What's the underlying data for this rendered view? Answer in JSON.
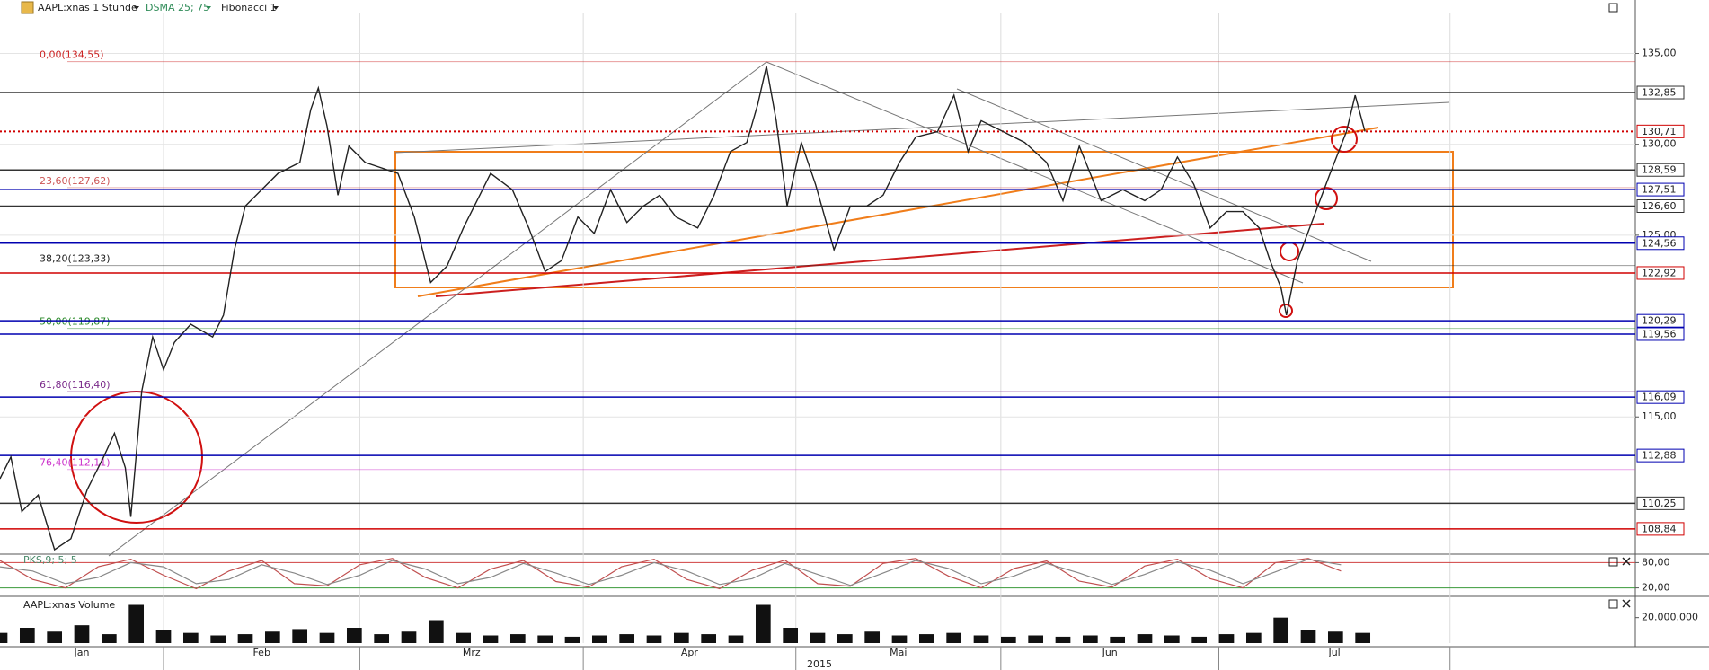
{
  "toolbar": {
    "symbol": "AAPL:xnas 1 Stunde",
    "indicator": "DSMA 25; 75",
    "study": "Fibonacci 1"
  },
  "chart_data": [
    {
      "type": "line",
      "color": "#222222",
      "grid": true,
      "xlim": [
        0,
        1500
      ],
      "xticks": [
        150,
        330,
        535,
        730,
        918,
        1118,
        1330
      ],
      "months": [
        "Jan",
        "Feb",
        "Mrz",
        "Apr",
        "Mai",
        "Jun",
        "Jul"
      ],
      "year": "2015",
      "ylim": [
        107.5,
        137.2
      ],
      "yticks": [
        {
          "value": 135,
          "label": "135,00"
        },
        {
          "value": 130,
          "label": "130,00"
        },
        {
          "value": 125,
          "label": "125,00"
        },
        {
          "value": 115,
          "label": "115,00"
        }
      ],
      "x": [
        0,
        10,
        20,
        35,
        50,
        65,
        80,
        95,
        105,
        115,
        120,
        130,
        140,
        150,
        160,
        175,
        195,
        205,
        215,
        225,
        240,
        255,
        275,
        285,
        292,
        300,
        310,
        320,
        335,
        350,
        365,
        380,
        395,
        410,
        425,
        440,
        450,
        470,
        485,
        500,
        515,
        530,
        545,
        560,
        575,
        590,
        605,
        620,
        640,
        655,
        670,
        685,
        695,
        703,
        712,
        722,
        735,
        748,
        765,
        780,
        795,
        810,
        825,
        840,
        860,
        875,
        888,
        900,
        920,
        940,
        960,
        975,
        990,
        1010,
        1030,
        1050,
        1065,
        1080,
        1095,
        1110,
        1125,
        1140,
        1155,
        1165,
        1175,
        1180,
        1190,
        1205,
        1220,
        1235,
        1243,
        1252
      ],
      "values": [
        111.6,
        112.8,
        109.8,
        110.7,
        107.7,
        108.3,
        111.0,
        112.8,
        114.1,
        112.2,
        109.5,
        116.4,
        119.4,
        117.6,
        119.1,
        120.1,
        119.4,
        120.6,
        124.2,
        126.6,
        127.5,
        128.4,
        129.0,
        131.9,
        133.1,
        131.0,
        127.2,
        129.9,
        129.0,
        128.7,
        128.4,
        126.0,
        122.4,
        123.3,
        125.4,
        127.2,
        128.4,
        127.5,
        125.4,
        123.0,
        123.6,
        126.0,
        125.1,
        127.5,
        125.7,
        126.6,
        127.2,
        126.0,
        125.4,
        127.2,
        129.6,
        130.1,
        132.2,
        134.3,
        131.3,
        126.6,
        130.1,
        127.8,
        124.2,
        126.6,
        126.6,
        127.2,
        129.0,
        130.4,
        130.7,
        132.7,
        129.6,
        131.3,
        130.7,
        130.1,
        129.0,
        126.9,
        129.9,
        126.9,
        127.5,
        126.9,
        127.5,
        129.3,
        127.8,
        125.4,
        126.3,
        126.3,
        125.4,
        123.6,
        122.1,
        120.6,
        123.6,
        126.0,
        128.4,
        130.7,
        132.7,
        130.7
      ],
      "levels": [
        {
          "value": 132.85,
          "label": "132,85",
          "color": "#333333",
          "style": "solid"
        },
        {
          "value": 130.71,
          "label": "130,71",
          "color": "#d00000",
          "style": "dotted"
        },
        {
          "value": 128.59,
          "label": "128,59",
          "color": "#333333",
          "style": "solid"
        },
        {
          "value": 127.51,
          "label": "127,51",
          "color": "#0000b0",
          "style": "solid"
        },
        {
          "value": 126.6,
          "label": "126,60",
          "color": "#333333",
          "style": "solid"
        },
        {
          "value": 124.56,
          "label": "124,56",
          "color": "#0000b0",
          "style": "solid"
        },
        {
          "value": 122.92,
          "label": "122,92",
          "color": "#d00000",
          "style": "solid"
        },
        {
          "value": 120.29,
          "label": "120,29",
          "color": "#0000b0",
          "style": "solid"
        },
        {
          "value": 119.56,
          "label": "119,56",
          "color": "#0000b0",
          "style": "solid"
        },
        {
          "value": 116.09,
          "label": "116,09",
          "color": "#0000b0",
          "style": "solid"
        },
        {
          "value": 112.88,
          "label": "112,88",
          "color": "#0000b0",
          "style": "solid"
        },
        {
          "value": 110.25,
          "label": "110,25",
          "color": "#333333",
          "style": "solid"
        },
        {
          "value": 108.84,
          "label": "108,84",
          "color": "#d00000",
          "style": "solid"
        }
      ],
      "fibonacci": [
        {
          "value": 134.55,
          "label": "0,00(134,55)",
          "color": "#cc2222"
        },
        {
          "value": 127.62,
          "label": "23,60(127,62)",
          "color": "#cc5555"
        },
        {
          "value": 123.33,
          "label": "38,20(123,33)",
          "color": "#222222"
        },
        {
          "value": 119.87,
          "label": "50,00(119,87)",
          "color": "#2a8a2a"
        },
        {
          "value": 116.4,
          "label": "61,80(116,40)",
          "color": "#7a2a8a"
        },
        {
          "value": 112.11,
          "label": "76,40(112,11)",
          "color": "#cc33cc"
        }
      ]
    },
    {
      "type": "line",
      "title": "PKS,9; 5; 5",
      "xlim": [
        0,
        1500
      ],
      "ylim": [
        0,
        100
      ],
      "yticks": [
        {
          "value": 80,
          "label": "80,00"
        },
        {
          "value": 20,
          "label": "20,00"
        }
      ],
      "x": [
        0,
        30,
        60,
        90,
        120,
        150,
        180,
        210,
        240,
        270,
        300,
        330,
        360,
        390,
        420,
        450,
        480,
        510,
        540,
        570,
        600,
        630,
        660,
        690,
        720,
        750,
        780,
        810,
        840,
        870,
        900,
        930,
        960,
        990,
        1020,
        1050,
        1080,
        1110,
        1140,
        1170,
        1200,
        1230
      ],
      "series": [
        {
          "color": "#c05050",
          "values": [
            85,
            40,
            20,
            70,
            88,
            50,
            18,
            60,
            85,
            30,
            25,
            75,
            90,
            45,
            20,
            65,
            85,
            35,
            22,
            70,
            88,
            40,
            18,
            62,
            86,
            30,
            24,
            78,
            90,
            48,
            20,
            66,
            84,
            36,
            22,
            72,
            88,
            42,
            20,
            80,
            90,
            60
          ]
        },
        {
          "color": "#888888",
          "values": [
            70,
            60,
            30,
            45,
            80,
            70,
            30,
            40,
            75,
            55,
            28,
            50,
            85,
            65,
            30,
            45,
            78,
            55,
            28,
            50,
            80,
            60,
            28,
            42,
            78,
            52,
            26,
            55,
            85,
            66,
            30,
            48,
            78,
            55,
            28,
            52,
            82,
            62,
            30,
            58,
            88,
            75
          ]
        }
      ]
    },
    {
      "type": "bar",
      "title": "AAPL:xnas Volume",
      "color": "#111111",
      "xlim": [
        0,
        1500
      ],
      "ylim": [
        0,
        36000000
      ],
      "yticks": [
        {
          "value": 20000000,
          "label": "20.000.000"
        }
      ],
      "x": [
        0,
        25,
        50,
        75,
        100,
        125,
        150,
        175,
        200,
        225,
        250,
        275,
        300,
        325,
        350,
        375,
        400,
        425,
        450,
        475,
        500,
        525,
        550,
        575,
        600,
        625,
        650,
        675,
        700,
        725,
        750,
        775,
        800,
        825,
        850,
        875,
        900,
        925,
        950,
        975,
        1000,
        1025,
        1050,
        1075,
        1100,
        1125,
        1150,
        1175,
        1200,
        1225,
        1250
      ],
      "values": [
        8000000,
        12000000,
        9000000,
        14000000,
        7000000,
        30000000,
        10000000,
        8000000,
        6000000,
        7000000,
        9000000,
        11000000,
        8000000,
        12000000,
        7000000,
        9000000,
        18000000,
        8000000,
        6000000,
        7000000,
        6000000,
        5000000,
        6000000,
        7000000,
        6000000,
        8000000,
        7000000,
        6000000,
        30000000,
        12000000,
        8000000,
        7000000,
        9000000,
        6000000,
        7000000,
        8000000,
        6000000,
        5000000,
        6000000,
        5000000,
        6000000,
        5000000,
        7000000,
        6000000,
        5000000,
        7000000,
        8000000,
        20000000,
        10000000,
        9000000,
        8000000
      ]
    }
  ]
}
